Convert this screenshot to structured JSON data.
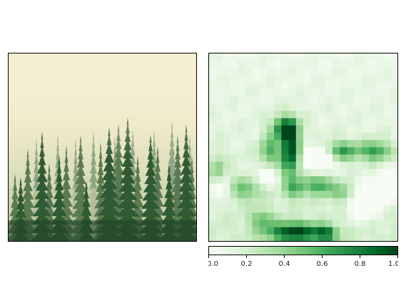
{
  "chart_data": [
    {
      "type": "image",
      "subject": "misty conifer forest",
      "palette": {
        "mist_top": "#f7f0d4",
        "mist_mid": "#e6e2bf",
        "haze": "#c9d1a8",
        "tree_far": "#8fa583",
        "tree_mid": "#5a7a52",
        "tree_near": "#2f5a34",
        "tree_dark": "#1f4127"
      }
    },
    {
      "type": "heatmap",
      "colormap": "Greens",
      "grid": [
        26,
        26
      ],
      "vmin": 0.0,
      "vmax": 1.0,
      "colorbar": {
        "orientation": "horizontal",
        "ticks": [
          "0.0",
          "0.2",
          "0.4",
          "0.6",
          "0.8",
          "1.0"
        ]
      }
    }
  ]
}
